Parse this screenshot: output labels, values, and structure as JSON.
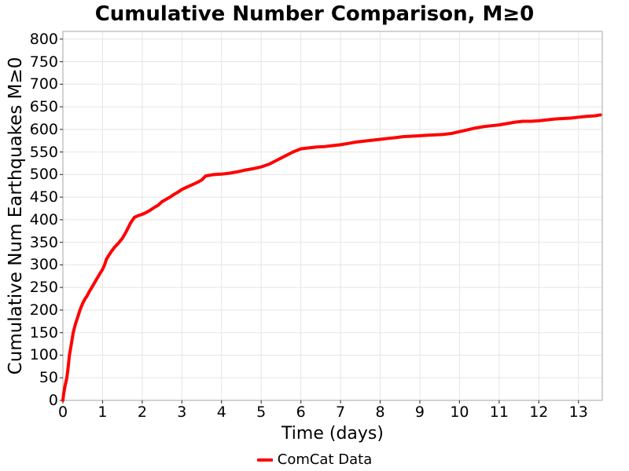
{
  "chart_data": {
    "type": "line",
    "title": "Cumulative Number Comparison, M≥0",
    "xlabel": "Time (days)",
    "ylabel": "Cumulative Num Earthquakes M≥0",
    "xlim": [
      0,
      13.6
    ],
    "ylim": [
      0,
      817
    ],
    "xticks": [
      0,
      1,
      2,
      3,
      4,
      5,
      6,
      7,
      8,
      9,
      10,
      11,
      12,
      13
    ],
    "yticks": [
      0,
      50,
      100,
      150,
      200,
      250,
      300,
      350,
      400,
      450,
      500,
      550,
      600,
      650,
      700,
      750,
      800
    ],
    "grid": true,
    "legend": {
      "position": "bottom-center",
      "entries": [
        {
          "label": "ComCat Data",
          "color": "#ff0000"
        }
      ]
    },
    "series": [
      {
        "name": "ComCat Data",
        "color": "#ff0000",
        "line_width": 4,
        "x": [
          0.0,
          0.02,
          0.05,
          0.08,
          0.1,
          0.13,
          0.165,
          0.2,
          0.26,
          0.32,
          0.38,
          0.43,
          0.5,
          0.56,
          0.6,
          0.66,
          0.73,
          0.8,
          0.86,
          0.93,
          1.0,
          1.05,
          1.1,
          1.2,
          1.3,
          1.4,
          1.5,
          1.6,
          1.7,
          1.8,
          1.9,
          2.0,
          2.1,
          2.2,
          2.3,
          2.4,
          2.5,
          2.6,
          2.7,
          2.8,
          2.9,
          3.0,
          3.1,
          3.2,
          3.3,
          3.4,
          3.5,
          3.6,
          3.8,
          4.0,
          4.2,
          4.4,
          4.6,
          4.8,
          5.0,
          5.2,
          5.4,
          5.6,
          5.8,
          6.0,
          6.2,
          6.4,
          6.6,
          6.8,
          7.0,
          7.2,
          7.4,
          7.6,
          7.8,
          8.0,
          8.2,
          8.4,
          8.6,
          8.8,
          9.0,
          9.2,
          9.4,
          9.6,
          9.8,
          10.0,
          10.2,
          10.4,
          10.6,
          10.8,
          11.0,
          11.2,
          11.4,
          11.6,
          11.8,
          12.0,
          12.2,
          12.4,
          12.6,
          12.8,
          13.0,
          13.2,
          13.4,
          13.55
        ],
        "y": [
          0,
          15,
          30,
          42,
          50,
          72,
          100,
          118,
          150,
          170,
          186,
          200,
          215,
          225,
          230,
          240,
          250,
          261,
          270,
          280,
          290,
          300,
          313,
          327,
          339,
          348,
          359,
          374,
          392,
          405,
          409,
          412,
          416,
          421,
          427,
          432,
          440,
          445,
          450,
          456,
          461,
          467,
          471,
          475,
          479,
          483,
          488,
          497,
          500,
          501,
          503,
          506,
          510,
          513,
          517,
          523,
          532,
          541,
          550,
          557,
          559,
          561,
          562,
          564,
          566,
          569,
          572,
          574,
          576,
          578,
          580,
          582,
          584,
          585,
          586,
          587,
          588,
          589,
          591,
          595,
          599,
          603,
          606,
          608,
          610,
          613,
          616,
          618,
          618,
          619,
          621,
          623,
          624,
          625,
          627,
          629,
          630,
          632
        ]
      }
    ]
  },
  "colors": {
    "background": "#ffffff",
    "grid": "#e5e5e5",
    "axis_border": "#b5b5b5",
    "tick": "#444444",
    "text": "#000000",
    "line": "#ff0000"
  }
}
